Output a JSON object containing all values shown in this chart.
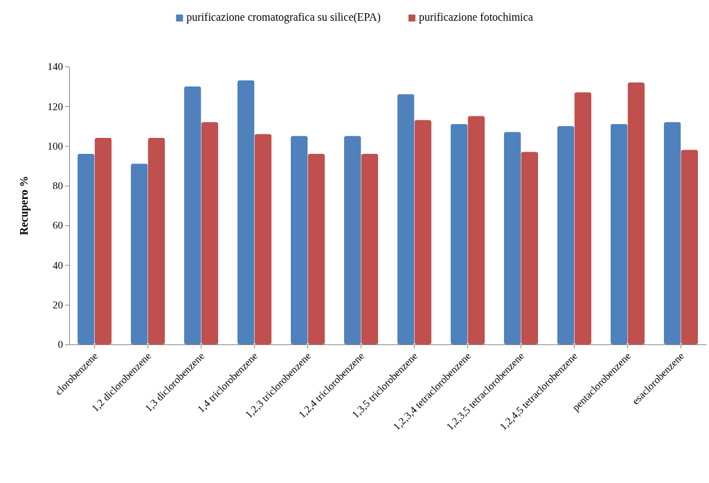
{
  "chart_data": {
    "type": "bar",
    "ylabel": "Recupero  %",
    "categories": [
      "clorobenzene",
      "1,2 diclorobenzene",
      "1,3 diclorobenzene",
      "1,4 triclorobenzene",
      "1,2,3 triclorobenzene",
      "1,2,4 triclorobenzene",
      "1,3,5 triclorobenzene",
      "1,2,3,4 tetraclorobenzene",
      "1,2,3,5 tetraclorobenzene",
      "1,2,4,5 tetraclorobenzene",
      "pentaclorobenzene",
      "esaclorobenzene"
    ],
    "series": [
      {
        "name": "purificazione cromatografica su silice(EPA)",
        "color": "#4f81bd",
        "values": [
          96,
          91,
          130,
          133,
          105,
          105,
          126,
          111,
          107,
          110,
          111,
          112
        ]
      },
      {
        "name": "purificazione fotochimica",
        "color": "#c0504d",
        "values": [
          104,
          104,
          112,
          106,
          96,
          96,
          113,
          115,
          97,
          127,
          132,
          98
        ]
      }
    ],
    "ylim": [
      0,
      140
    ],
    "yticks": [
      0,
      20,
      40,
      60,
      80,
      100,
      120,
      140
    ],
    "grid": false,
    "legend": "top"
  }
}
